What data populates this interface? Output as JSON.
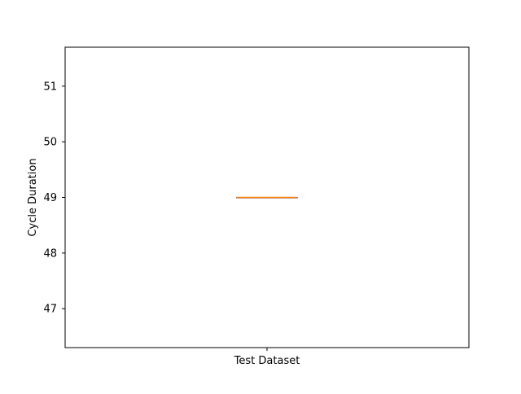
{
  "chart_data": {
    "type": "box",
    "title": "",
    "xlabel": "",
    "ylabel": "Cycle Duration",
    "categories": [
      "Test Dataset"
    ],
    "boxes": [
      {
        "category": "Test Dataset",
        "min": 49,
        "q1": 49,
        "median": 49,
        "q3": 49,
        "max": 49
      }
    ],
    "ylim": [
      46.3,
      51.7
    ],
    "yticks": [
      47,
      48,
      49,
      50,
      51
    ],
    "grid": false,
    "colors": {
      "box": "#000000",
      "median": "#ff7f0e",
      "axes": "#000000"
    }
  }
}
